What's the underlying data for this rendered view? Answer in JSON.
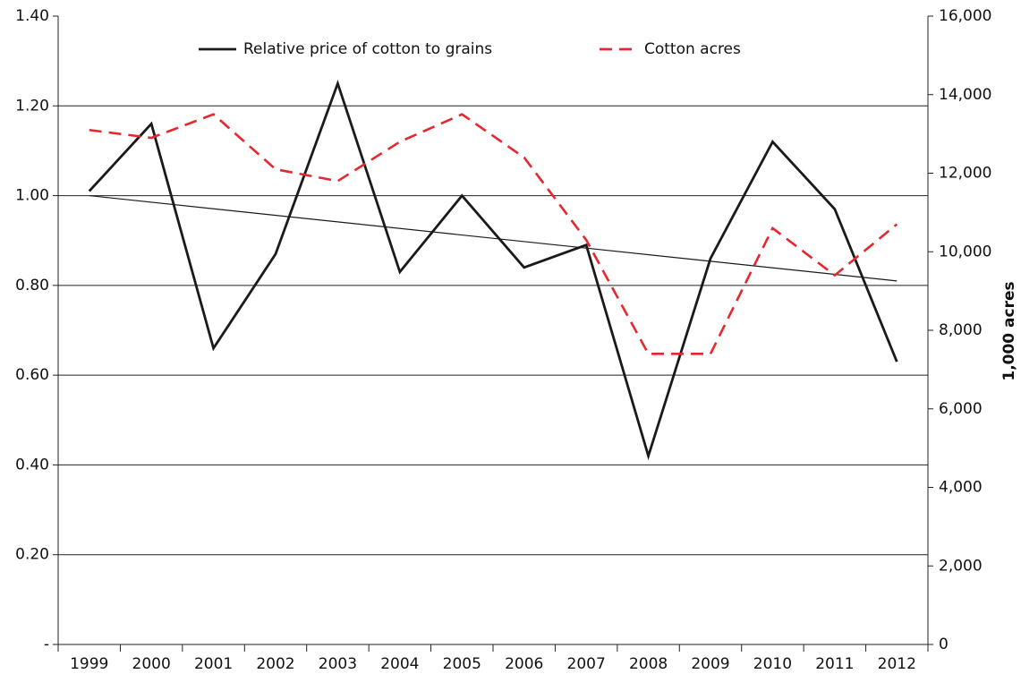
{
  "chart_data": {
    "type": "line",
    "y2label": "1,000 acres",
    "categories": [
      "1999",
      "2000",
      "2001",
      "2002",
      "2003",
      "2004",
      "2005",
      "2006",
      "2007",
      "2008",
      "2009",
      "2010",
      "2011",
      "2012"
    ],
    "series": [
      {
        "name": "Relative price of cotton to grains",
        "color": "#1a1a1a",
        "dash": false,
        "values": [
          1.01,
          1.16,
          0.66,
          0.87,
          1.25,
          0.83,
          1.0,
          0.84,
          0.89,
          0.42,
          0.86,
          1.12,
          0.97,
          0.63
        ]
      },
      {
        "name": "Cotton acres",
        "color": "#e8262d",
        "dash": true,
        "axis": "y2",
        "values": [
          13100,
          12900,
          13500,
          12100,
          11800,
          12800,
          13500,
          12400,
          10300,
          7400,
          7400,
          10600,
          9400,
          10700
        ]
      }
    ],
    "trendline": {
      "color": "#1a1a1a",
      "values": [
        1.0,
        0.81
      ]
    },
    "ylim": [
      0,
      1.4
    ],
    "yticks": [
      {
        "value": 0,
        "label": "-"
      },
      {
        "value": 0.2,
        "label": "0.20"
      },
      {
        "value": 0.4,
        "label": "0.40"
      },
      {
        "value": 0.6,
        "label": "0.60"
      },
      {
        "value": 0.8,
        "label": "0.80"
      },
      {
        "value": 1.0,
        "label": "1.00"
      },
      {
        "value": 1.2,
        "label": "1.20"
      },
      {
        "value": 1.4,
        "label": "1.40"
      }
    ],
    "y2lim": [
      0,
      16000
    ],
    "y2ticks": [
      0,
      {
        "value": 2000,
        "label": "2,000"
      },
      {
        "value": 4000,
        "label": "4,000"
      },
      {
        "value": 6000,
        "label": "6,000"
      },
      {
        "value": 8000,
        "label": "8,000"
      },
      {
        "value": 10000,
        "label": "10,000"
      },
      {
        "value": 12000,
        "label": "12,000"
      },
      {
        "value": 14000,
        "label": "14,000"
      },
      {
        "value": 16000,
        "label": "16,000"
      }
    ],
    "grid": true
  }
}
